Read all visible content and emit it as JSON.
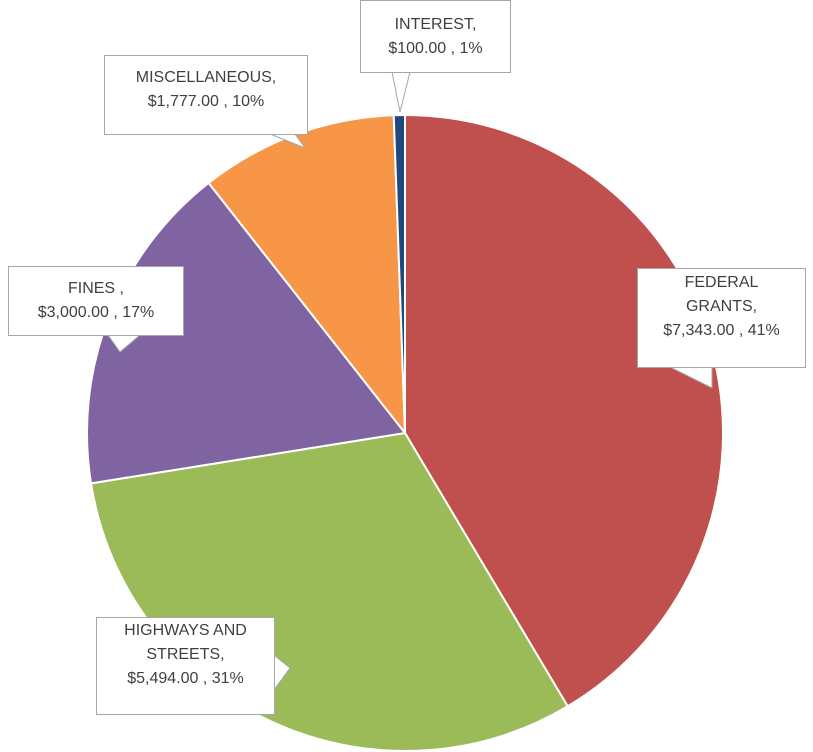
{
  "chart_data": {
    "type": "pie",
    "categories": [
      "FEDERAL GRANTS,",
      "HIGHWAYS AND STREETS,",
      "FINES ,",
      "MISCELLANEOUS,",
      "INTEREST,"
    ],
    "values": [
      7343,
      5494,
      3000,
      1777,
      100
    ],
    "value_labels": [
      "$7,343.00 ,",
      "$5,494.00 ,",
      "$3,000.00 ,",
      "$1,777.00 ,",
      "$100.00 ,"
    ],
    "percent_labels": [
      "41%",
      "31%",
      "17%",
      "10%",
      "1%"
    ],
    "colors": [
      "#c0504d",
      "#9bbb59",
      "#8064a2",
      "#f79646",
      "#1f497d"
    ]
  }
}
